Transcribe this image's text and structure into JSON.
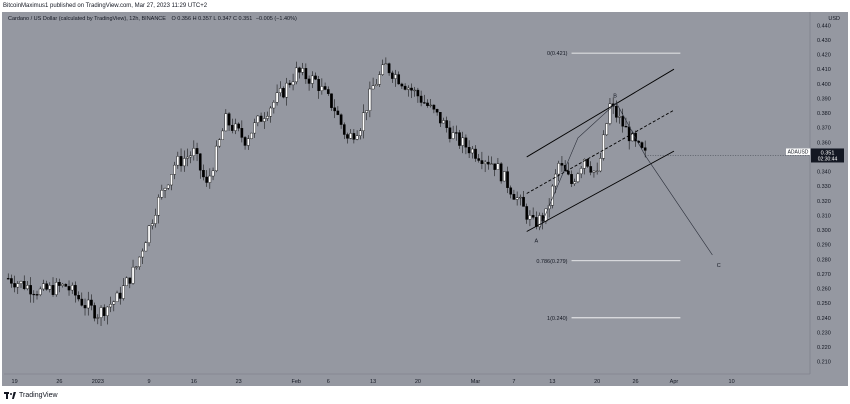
{
  "header": {
    "publish_text": "BitcoinMaximus1 published on TradingView.com, Mar 27, 2023 11:29 UTC+2"
  },
  "legend": {
    "symbol_text": "Cardano / US Dollar (calculated by TradingView), 12h, BINANCE",
    "ohlc_text": "O 0.356  H 0.357  L 0.347  C 0.351",
    "change_text": "−0.005 (−1.40%)"
  },
  "footer": {
    "brand": "TradingView"
  },
  "colors": {
    "background": "#9598a1",
    "up_candle": "#ffffff",
    "down_candle": "#000000",
    "price_tag": "#131722"
  },
  "chart_data": {
    "type": "candlestick",
    "interval": "12h",
    "currency_label": "USD",
    "ylim": [
      0.205,
      0.445
    ],
    "y_ticks": [
      "0.440",
      "0.430",
      "0.420",
      "0.410",
      "0.400",
      "0.390",
      "0.380",
      "0.370",
      "0.360",
      "0.350",
      "0.340",
      "0.330",
      "0.320",
      "0.310",
      "0.300",
      "0.290",
      "0.280",
      "0.270",
      "0.260",
      "0.250",
      "0.240",
      "0.230",
      "0.220",
      "0.210"
    ],
    "x_ticks": [
      "19",
      "26",
      "2023",
      "9",
      "16",
      "23",
      "Feb",
      "6",
      "13",
      "20",
      "Mar",
      "7",
      "13",
      "20",
      "26",
      "Apr",
      "10"
    ],
    "x_tick_days": [
      -13,
      -6,
      0,
      8,
      15,
      22,
      31,
      36,
      43,
      50,
      59,
      65,
      71,
      78,
      84,
      90,
      99
    ],
    "xlim": [
      -14.5,
      110
    ],
    "current_price": {
      "value": "0.351",
      "label": "ADAUSD",
      "countdown": "02:30:44"
    },
    "fib_levels": [
      {
        "label": "0(0.421)",
        "value": 0.421
      },
      {
        "label": "0.786(0.279)",
        "value": 0.279
      },
      {
        "label": "1(0.240)",
        "value": 0.24
      }
    ],
    "wave_labels": [
      "A",
      "B",
      "C"
    ],
    "anchors": [
      {
        "day": -14,
        "price": 0.267
      },
      {
        "day": -9,
        "price": 0.258
      },
      {
        "day": -5,
        "price": 0.262
      },
      {
        "day": -2,
        "price": 0.249
      },
      {
        "day": 0,
        "price": 0.243
      },
      {
        "day": 3,
        "price": 0.253
      },
      {
        "day": 6,
        "price": 0.275
      },
      {
        "day": 9,
        "price": 0.315
      },
      {
        "day": 12,
        "price": 0.345
      },
      {
        "day": 15,
        "price": 0.353
      },
      {
        "day": 17,
        "price": 0.33
      },
      {
        "day": 20,
        "price": 0.375
      },
      {
        "day": 23,
        "price": 0.362
      },
      {
        "day": 26,
        "price": 0.38
      },
      {
        "day": 29,
        "price": 0.395
      },
      {
        "day": 31,
        "price": 0.408
      },
      {
        "day": 34,
        "price": 0.402
      },
      {
        "day": 37,
        "price": 0.383
      },
      {
        "day": 39,
        "price": 0.362
      },
      {
        "day": 41,
        "price": 0.372
      },
      {
        "day": 43,
        "price": 0.398
      },
      {
        "day": 45,
        "price": 0.412
      },
      {
        "day": 47,
        "price": 0.404
      },
      {
        "day": 50,
        "price": 0.392
      },
      {
        "day": 53,
        "price": 0.378
      },
      {
        "day": 56,
        "price": 0.362
      },
      {
        "day": 59,
        "price": 0.353
      },
      {
        "day": 62,
        "price": 0.345
      },
      {
        "day": 65,
        "price": 0.325
      },
      {
        "day": 68,
        "price": 0.304
      },
      {
        "day": 70,
        "price": 0.31
      },
      {
        "day": 72,
        "price": 0.345
      },
      {
        "day": 74,
        "price": 0.332
      },
      {
        "day": 76,
        "price": 0.35
      },
      {
        "day": 78,
        "price": 0.337
      },
      {
        "day": 80,
        "price": 0.385
      },
      {
        "day": 82,
        "price": 0.372
      },
      {
        "day": 84,
        "price": 0.358
      },
      {
        "day": 85.5,
        "price": 0.351
      }
    ],
    "channel": {
      "lower": [
        [
          67,
          0.299
        ],
        [
          90,
          0.354
        ]
      ],
      "upper": [
        [
          67,
          0.35
        ],
        [
          90,
          0.41
        ]
      ],
      "mid": [
        [
          67,
          0.325
        ],
        [
          90,
          0.382
        ]
      ]
    },
    "projection": [
      [
        69,
        0.301
      ],
      [
        75,
        0.363
      ],
      [
        81,
        0.387
      ],
      [
        85.5,
        0.351
      ],
      [
        96,
        0.283
      ]
    ],
    "wave_points": [
      [
        68.5,
        0.293
      ],
      [
        80.8,
        0.392
      ],
      [
        97,
        0.276
      ]
    ]
  }
}
